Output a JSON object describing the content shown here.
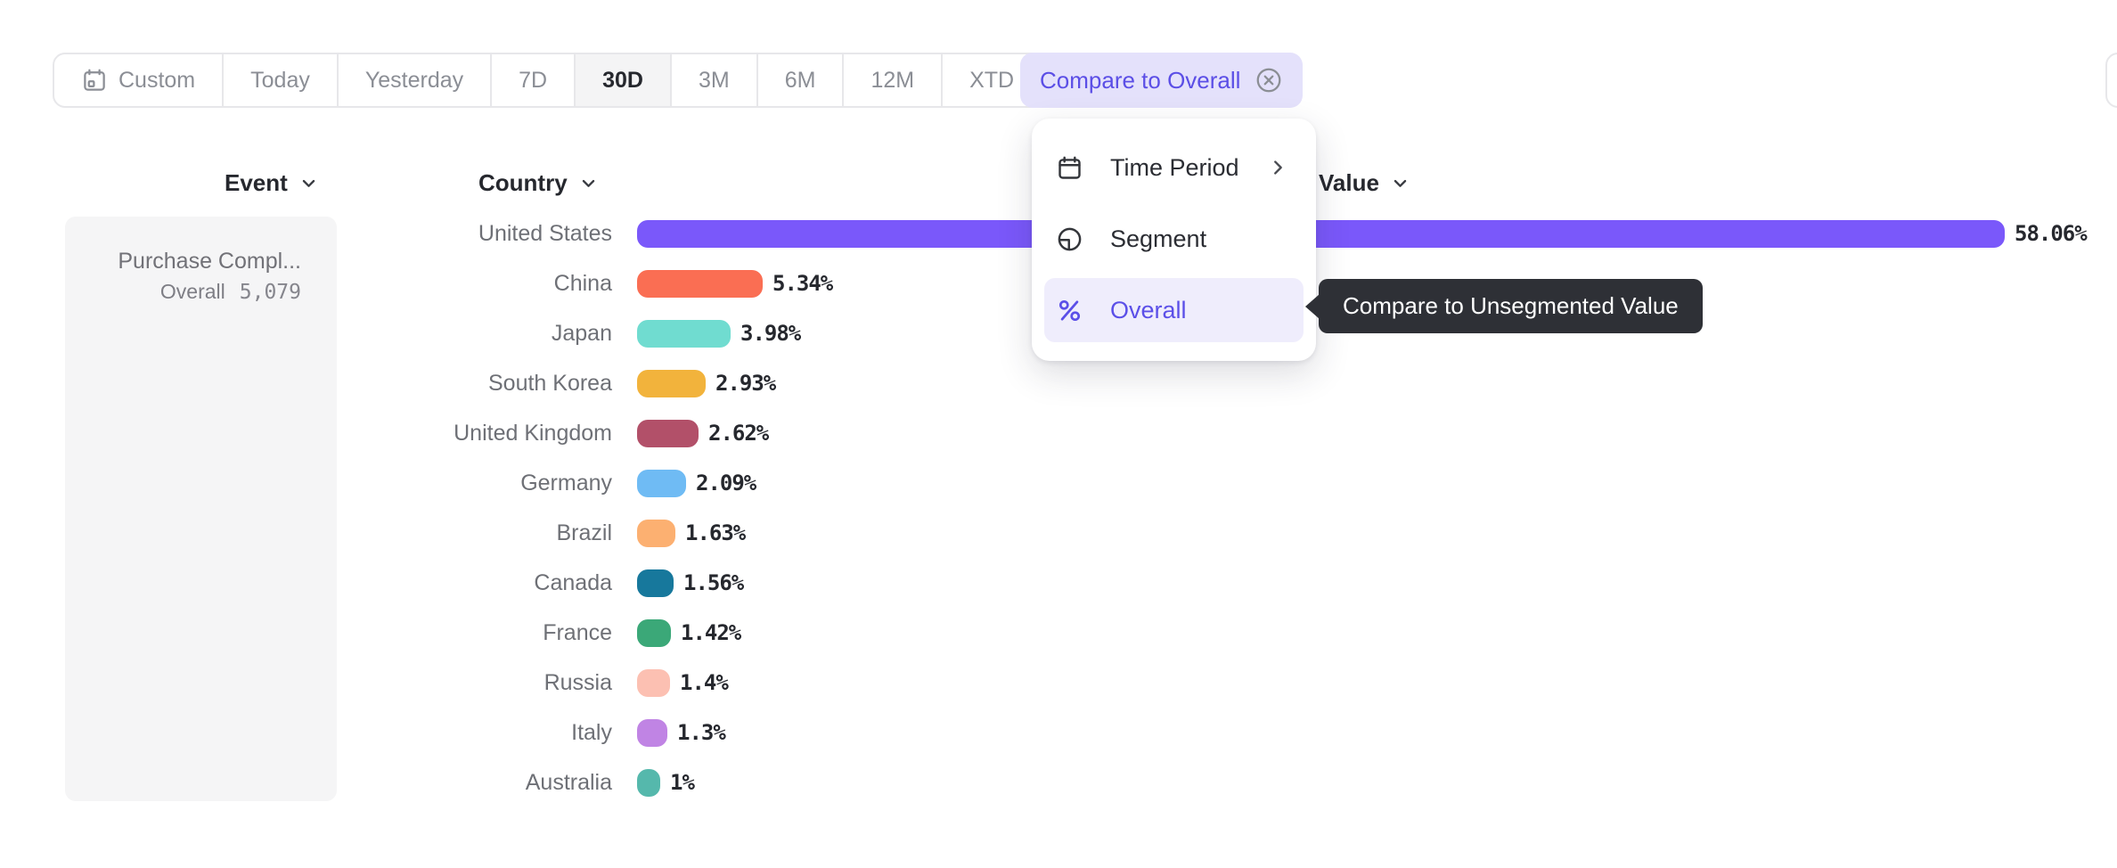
{
  "toolbar": {
    "ranges": [
      {
        "label": "Custom",
        "icon": "calendar-icon",
        "active": false
      },
      {
        "label": "Today",
        "active": false
      },
      {
        "label": "Yesterday",
        "active": false
      },
      {
        "label": "7D",
        "active": false
      },
      {
        "label": "30D",
        "active": true
      },
      {
        "label": "3M",
        "active": false
      },
      {
        "label": "6M",
        "active": false
      },
      {
        "label": "12M",
        "active": false
      },
      {
        "label": "XTD",
        "icon": "chevron-down-icon",
        "active": false
      }
    ],
    "compare_button": {
      "label": "Compare to Overall",
      "icon": "circled-x-icon",
      "accent": "#5b4ee6",
      "background": "#e4e1fb"
    }
  },
  "menu": {
    "items": [
      {
        "label": "Time Period",
        "icon": "calendar-icon",
        "trailing_icon": "chevron-right-icon",
        "active": false
      },
      {
        "label": "Segment",
        "icon": "segment-icon",
        "active": false
      },
      {
        "label": "Overall",
        "icon": "percent-icon",
        "active": true
      }
    ],
    "active_color": "#5b4fe8",
    "active_background": "#efedfc"
  },
  "tooltip": {
    "text": "Compare to Unsegmented Value",
    "background": "#2e3036"
  },
  "columns": {
    "event": {
      "label": "Event",
      "icon": "chevron-down-icon"
    },
    "country": {
      "label": "Country",
      "icon": "chevron-down-icon"
    },
    "value": {
      "label": "Value",
      "icon": "chevron-down-icon"
    }
  },
  "event_cell": {
    "name": "Purchase Compl...",
    "overall_label": "Overall",
    "overall_value": "5,079"
  },
  "chart_data": {
    "type": "bar",
    "orientation": "horizontal",
    "title": "",
    "xlabel": "Value",
    "ylabel": "Country",
    "xlim": [
      0,
      58.06
    ],
    "grid": false,
    "categories": [
      "United States",
      "China",
      "Japan",
      "South Korea",
      "United Kingdom",
      "Germany",
      "Brazil",
      "Canada",
      "France",
      "Russia",
      "Italy",
      "Australia"
    ],
    "values": [
      58.06,
      5.34,
      3.98,
      2.93,
      2.62,
      2.09,
      1.63,
      1.56,
      1.42,
      1.4,
      1.3,
      1
    ],
    "value_labels": [
      "58.06%",
      "5.34%",
      "3.98%",
      "2.93%",
      "2.62%",
      "2.09%",
      "1.63%",
      "1.56%",
      "1.42%",
      "1.4%",
      "1.3%",
      "1%"
    ],
    "colors": [
      "#7a58fa",
      "#fa6e53",
      "#70dcd0",
      "#f2b33c",
      "#b25069",
      "#6fbbf4",
      "#fcb071",
      "#17789c",
      "#3ba878",
      "#fcc0b2",
      "#c084e4",
      "#55b8ac"
    ]
  }
}
